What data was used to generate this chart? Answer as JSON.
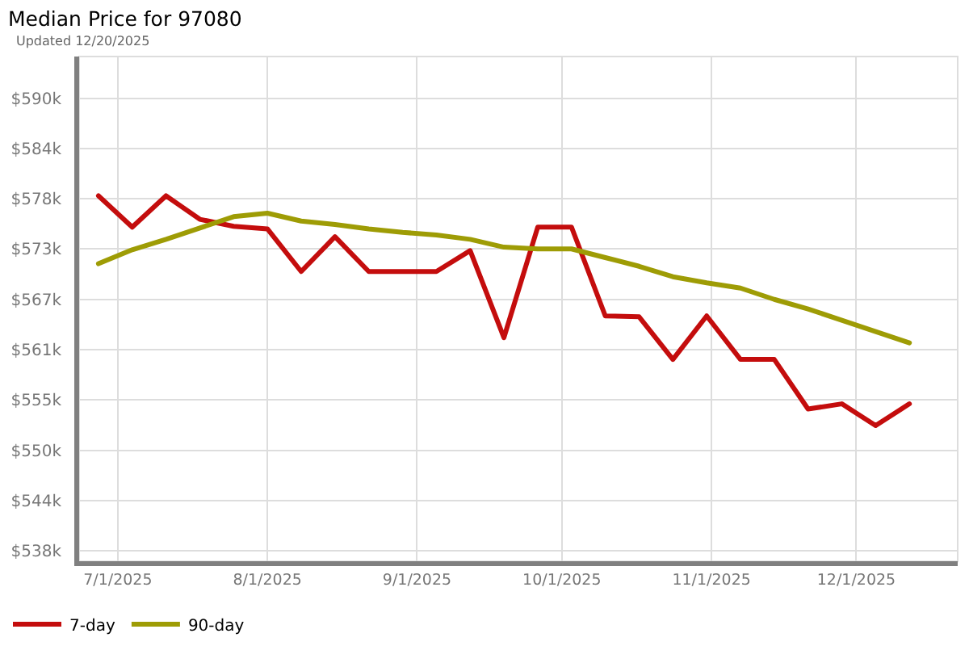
{
  "chart_data": {
    "type": "line",
    "title": "Median Price for 97080",
    "subtitle": "Updated 12/20/2025",
    "x": [
      "2025-06-27",
      "2025-07-04",
      "2025-07-11",
      "2025-07-18",
      "2025-07-25",
      "2025-08-01",
      "2025-08-08",
      "2025-08-15",
      "2025-08-22",
      "2025-08-29",
      "2025-09-05",
      "2025-09-12",
      "2025-09-19",
      "2025-09-26",
      "2025-10-03",
      "2025-10-10",
      "2025-10-17",
      "2025-10-24",
      "2025-10-31",
      "2025-11-07",
      "2025-11-14",
      "2025-11-21",
      "2025-11-28",
      "2025-12-05",
      "2025-12-12"
    ],
    "series": [
      {
        "name": "7-day",
        "color": "#c40d0d",
        "values": [
          578.8,
          575.2,
          578.8,
          576.1,
          575.3,
          575.0,
          570.1,
          574.1,
          570.1,
          570.1,
          570.1,
          572.5,
          562.5,
          575.2,
          575.2,
          565.0,
          564.9,
          560.0,
          565.0,
          560.0,
          560.0,
          554.3,
          554.9,
          552.4,
          554.9
        ]
      },
      {
        "name": "90-day",
        "color": "#9e9c05",
        "values": [
          571.0,
          572.6,
          573.8,
          575.1,
          576.4,
          576.8,
          575.9,
          575.5,
          575.0,
          574.6,
          574.3,
          573.8,
          572.9,
          572.7,
          572.7,
          571.7,
          570.7,
          569.5,
          568.8,
          568.2,
          566.9,
          565.8,
          564.5,
          563.2,
          561.9
        ]
      }
    ],
    "xlim": [
      "2025-06-23",
      "2025-12-22"
    ],
    "xticks": [
      {
        "value": "2025-07-01",
        "label": "7/1/2025"
      },
      {
        "value": "2025-08-01",
        "label": "8/1/2025"
      },
      {
        "value": "2025-09-01",
        "label": "9/1/2025"
      },
      {
        "value": "2025-10-01",
        "label": "10/1/2025"
      },
      {
        "value": "2025-11-01",
        "label": "11/1/2025"
      },
      {
        "value": "2025-12-01",
        "label": "12/1/2025"
      }
    ],
    "ylim": [
      536.8,
      594.8
    ],
    "yticks": [
      {
        "value": 538,
        "label": "$538k"
      },
      {
        "value": 543.78,
        "label": "$544k"
      },
      {
        "value": 549.56,
        "label": "$550k"
      },
      {
        "value": 555.34,
        "label": "$555k"
      },
      {
        "value": 561.12,
        "label": "$561k"
      },
      {
        "value": 566.9,
        "label": "$567k"
      },
      {
        "value": 572.68,
        "label": "$573k"
      },
      {
        "value": 578.46,
        "label": "$578k"
      },
      {
        "value": 584.24,
        "label": "$584k"
      },
      {
        "value": 590.02,
        "label": "$590k"
      }
    ],
    "grid": true,
    "legend": "bottom left",
    "line_style": "solid"
  }
}
